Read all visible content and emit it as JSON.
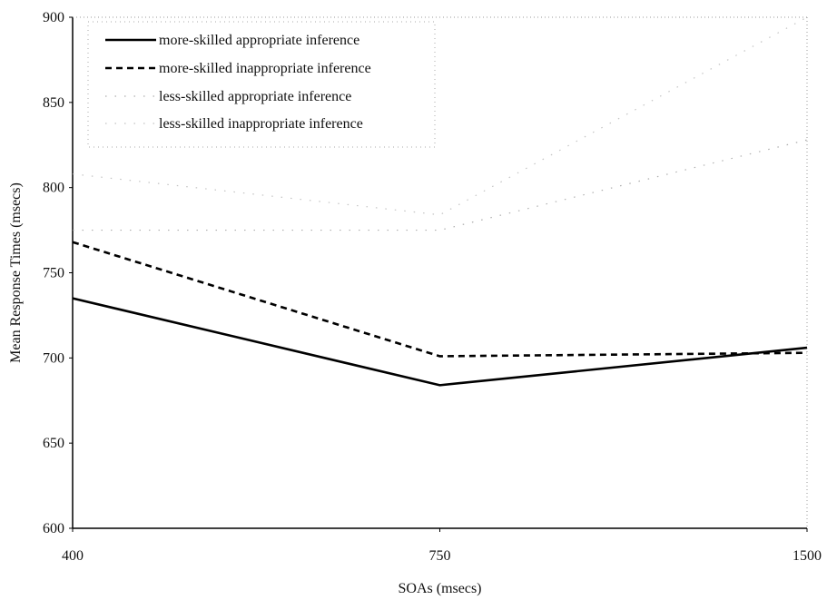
{
  "chart_data": {
    "type": "line",
    "x": [
      "400",
      "750",
      "1500"
    ],
    "xlabel": "SOAs (msecs)",
    "ylabel": "Mean Response Times (msecs)",
    "ylim": [
      600,
      900
    ],
    "yticks": [
      600,
      650,
      700,
      750,
      800,
      850,
      900
    ],
    "grid": false,
    "legend_position": "top-left",
    "series": [
      {
        "name": "more-skilled appropriate inference",
        "style": "solid",
        "color": "#000000",
        "values": [
          735,
          684,
          706
        ]
      },
      {
        "name": "more-skilled inappropriate inference",
        "style": "dashed",
        "color": "#000000",
        "values": [
          768,
          701,
          703
        ]
      },
      {
        "name": "less-skilled appropriate inference",
        "style": "faint-dotted",
        "color": "#9a9a9a",
        "values": [
          775,
          775,
          828
        ]
      },
      {
        "name": "less-skilled inappropriate inference",
        "style": "faint-dotted",
        "color": "#b4b4b4",
        "values": [
          808,
          784,
          900
        ]
      }
    ]
  }
}
